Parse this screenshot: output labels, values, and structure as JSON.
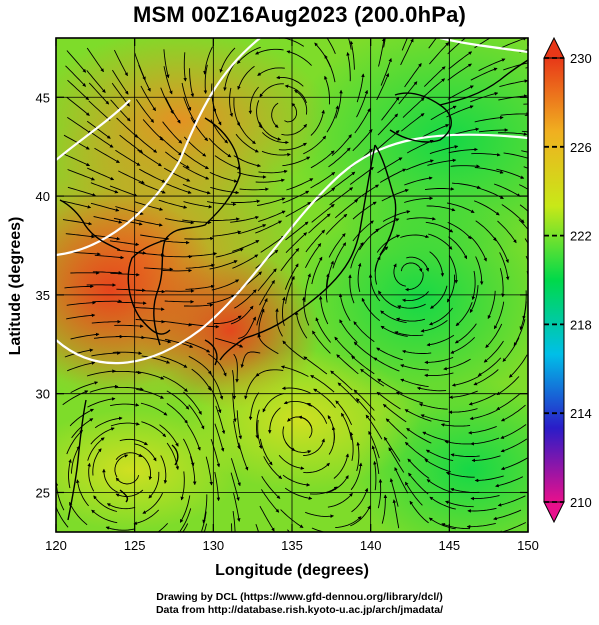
{
  "title": "MSM 00Z16Aug2023 (200.0hPa)",
  "map": {
    "xlabel": "Longitude (degrees)",
    "ylabel": "Latitude  (degrees)",
    "xlim": [
      120,
      150
    ],
    "ylim": [
      23,
      48
    ],
    "xticks": [
      120,
      125,
      130,
      135,
      140,
      145,
      150
    ],
    "yticks": [
      25,
      30,
      35,
      40,
      45
    ]
  },
  "colorbar": {
    "min": 210,
    "max": 230,
    "labels": [
      "230",
      "226",
      "222",
      "218",
      "214",
      "210"
    ],
    "colors": [
      "#e8108c",
      "#2a1cc8",
      "#00bfe8",
      "#00d94a",
      "#c8e818",
      "#f0b020",
      "#e83818"
    ]
  },
  "footer": {
    "line1": "Drawing by DCL (https://www.gfd-dennou.org/library/dcl/)",
    "line2": "Data from http://database.rish.kyoto-u.ac.jp/arch/jmadata/"
  }
}
